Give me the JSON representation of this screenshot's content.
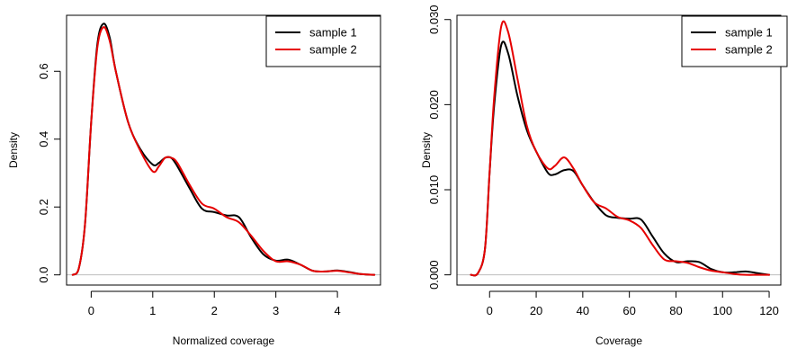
{
  "chart_data": [
    {
      "type": "line",
      "title": "",
      "xlabel": "Normalized coverage",
      "ylabel": "Density",
      "xlim": [
        -0.4,
        4.7
      ],
      "ylim": [
        -0.03,
        0.765
      ],
      "xticks": [
        0,
        1,
        2,
        3,
        4
      ],
      "xtick_labels": [
        "0",
        "1",
        "2",
        "3",
        "4"
      ],
      "yticks": [
        0.0,
        0.2,
        0.4,
        0.6
      ],
      "ytick_labels": [
        "0.0",
        "0.2",
        "0.4",
        "0.6"
      ],
      "zero_line": true,
      "legend_position": "top-right",
      "series": [
        {
          "name": "sample 1",
          "color": "#000000",
          "x": [
            -0.3,
            -0.2,
            -0.1,
            0.0,
            0.1,
            0.2,
            0.3,
            0.4,
            0.6,
            0.8,
            1.0,
            1.1,
            1.2,
            1.3,
            1.4,
            1.6,
            1.8,
            2.0,
            2.2,
            2.4,
            2.6,
            2.8,
            3.0,
            3.2,
            3.4,
            3.6,
            3.8,
            4.0,
            4.2,
            4.4,
            4.6
          ],
          "y": [
            0.0,
            0.02,
            0.15,
            0.45,
            0.68,
            0.74,
            0.7,
            0.6,
            0.45,
            0.37,
            0.325,
            0.33,
            0.345,
            0.345,
            0.32,
            0.255,
            0.195,
            0.185,
            0.175,
            0.17,
            0.11,
            0.06,
            0.042,
            0.045,
            0.03,
            0.012,
            0.01,
            0.013,
            0.008,
            0.002,
            0.0
          ]
        },
        {
          "name": "sample 2",
          "color": "#e60000",
          "x": [
            -0.3,
            -0.2,
            -0.1,
            0.0,
            0.1,
            0.2,
            0.3,
            0.4,
            0.6,
            0.8,
            1.0,
            1.1,
            1.2,
            1.3,
            1.4,
            1.6,
            1.8,
            2.0,
            2.2,
            2.4,
            2.6,
            2.8,
            3.0,
            3.2,
            3.4,
            3.6,
            3.8,
            4.0,
            4.2,
            4.4,
            4.6
          ],
          "y": [
            0.0,
            0.02,
            0.15,
            0.45,
            0.67,
            0.73,
            0.69,
            0.6,
            0.45,
            0.365,
            0.305,
            0.32,
            0.345,
            0.345,
            0.33,
            0.265,
            0.21,
            0.195,
            0.17,
            0.155,
            0.115,
            0.07,
            0.04,
            0.04,
            0.03,
            0.012,
            0.01,
            0.012,
            0.007,
            0.002,
            0.0
          ]
        }
      ]
    },
    {
      "type": "line",
      "title": "",
      "xlabel": "Coverage",
      "ylabel": "Density",
      "xlim": [
        -14,
        125
      ],
      "ylim": [
        -0.0012,
        0.0305
      ],
      "xticks": [
        0,
        20,
        40,
        60,
        80,
        100,
        120
      ],
      "xtick_labels": [
        "0",
        "20",
        "40",
        "60",
        "80",
        "100",
        "120"
      ],
      "yticks": [
        0.0,
        0.01,
        0.02,
        0.03
      ],
      "ytick_labels": [
        "0.000",
        "0.010",
        "0.020",
        "0.030"
      ],
      "zero_line": true,
      "legend_position": "top-right",
      "series": [
        {
          "name": "sample 1",
          "color": "#000000",
          "x": [
            -8,
            -5,
            -2,
            0,
            2,
            5,
            8,
            12,
            16,
            20,
            25,
            28,
            32,
            36,
            40,
            45,
            50,
            55,
            60,
            65,
            70,
            75,
            80,
            85,
            90,
            95,
            100,
            105,
            110,
            115,
            120
          ],
          "y": [
            0.0,
            0.0002,
            0.003,
            0.012,
            0.02,
            0.027,
            0.026,
            0.021,
            0.017,
            0.0145,
            0.012,
            0.0118,
            0.0123,
            0.0122,
            0.0105,
            0.0085,
            0.007,
            0.0067,
            0.0066,
            0.0065,
            0.0045,
            0.0025,
            0.0015,
            0.0016,
            0.0015,
            0.0007,
            0.0003,
            0.0003,
            0.0004,
            0.0002,
            0.0
          ]
        },
        {
          "name": "sample 2",
          "color": "#e60000",
          "x": [
            -8,
            -5,
            -2,
            0,
            2,
            5,
            8,
            12,
            16,
            20,
            25,
            28,
            32,
            36,
            40,
            45,
            50,
            55,
            60,
            65,
            70,
            75,
            80,
            85,
            90,
            95,
            100,
            105,
            110,
            115,
            120
          ],
          "y": [
            0.0,
            0.0002,
            0.003,
            0.012,
            0.021,
            0.0292,
            0.0285,
            0.023,
            0.0175,
            0.0145,
            0.0125,
            0.0128,
            0.0138,
            0.0125,
            0.0105,
            0.0085,
            0.0078,
            0.0068,
            0.0064,
            0.0055,
            0.0035,
            0.0018,
            0.0016,
            0.0014,
            0.0009,
            0.0005,
            0.0003,
            0.0001,
            0.0,
            0.0,
            0.0
          ]
        }
      ]
    }
  ]
}
